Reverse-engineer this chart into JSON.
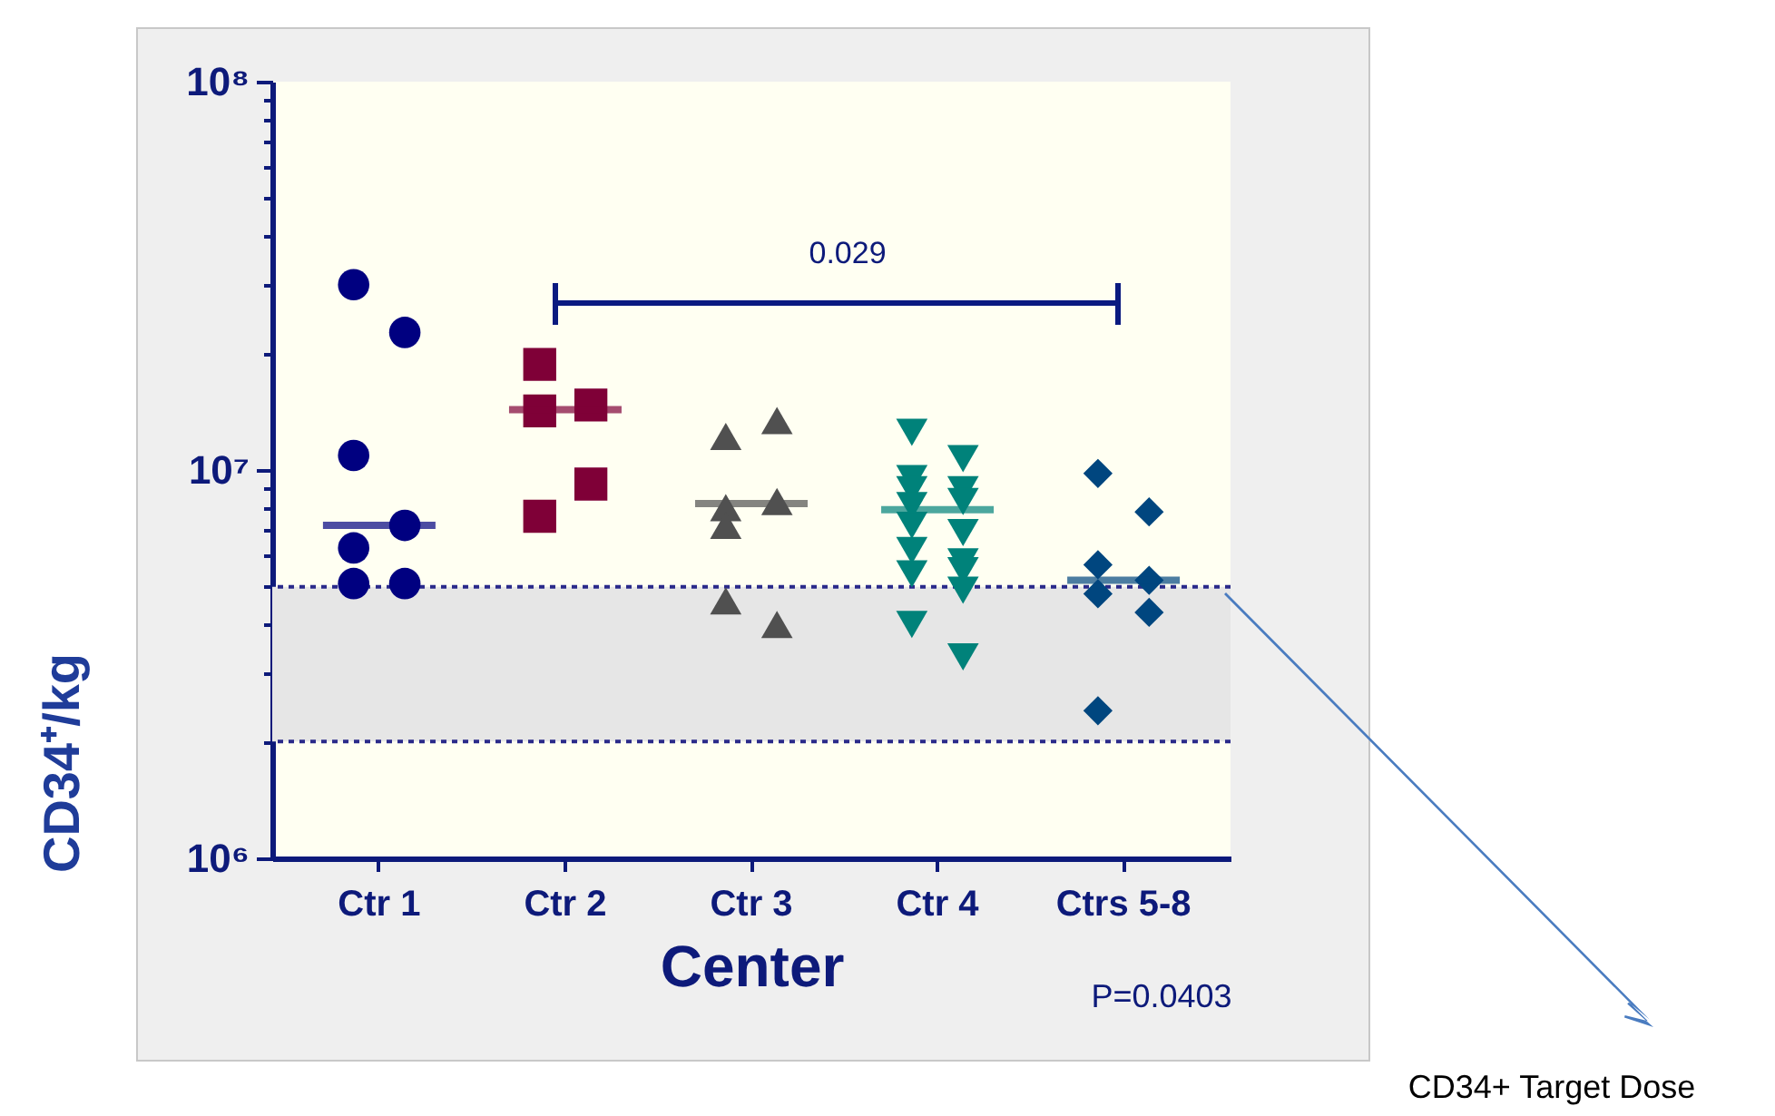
{
  "chart_data": {
    "type": "scatter",
    "xlabel": "Center",
    "ylabel": "CD34⁺/kg",
    "categories": [
      "Ctr 1",
      "Ctr 2",
      "Ctr 3",
      "Ctr 4",
      "Ctrs 5-8"
    ],
    "log": "y",
    "ylim": [
      1000000,
      100000000
    ],
    "yticks": [
      {
        "value": 1000000,
        "label": "10⁶"
      },
      {
        "value": 2000000,
        "label": null
      },
      {
        "value": 3000000,
        "label": null
      },
      {
        "value": 4000000,
        "label": null
      },
      {
        "value": 5000000,
        "label": null
      },
      {
        "value": 6000000,
        "label": null
      },
      {
        "value": 7000000,
        "label": null
      },
      {
        "value": 8000000,
        "label": null
      },
      {
        "value": 9000000,
        "label": null
      },
      {
        "value": 10000000,
        "label": "10⁷"
      },
      {
        "value": 20000000,
        "label": null
      },
      {
        "value": 30000000,
        "label": null
      },
      {
        "value": 40000000,
        "label": null
      },
      {
        "value": 50000000,
        "label": null
      },
      {
        "value": 60000000,
        "label": null
      },
      {
        "value": 70000000,
        "label": null
      },
      {
        "value": 80000000,
        "label": null
      },
      {
        "value": 90000000,
        "label": null
      },
      {
        "value": 100000000,
        "label": "10⁸"
      }
    ],
    "grid": false,
    "series": [
      {
        "marker": "circle",
        "color": "#000080",
        "x": [
          "Ctr 1",
          "Ctr 1",
          "Ctr 1",
          "Ctr 1",
          "Ctr 1",
          "Ctr 1",
          "Ctr 1"
        ],
        "values": [
          30000000,
          22600000,
          10900000,
          7200000,
          6300000,
          5100000,
          5100000
        ]
      },
      {
        "marker": "square",
        "color": "#7f0037",
        "x": [
          "Ctr 2",
          "Ctr 2",
          "Ctr 2",
          "Ctr 2",
          "Ctr 2"
        ],
        "values": [
          18700000,
          14700000,
          14200000,
          9200000,
          7600000
        ]
      },
      {
        "marker": "triangle",
        "color": "#505050",
        "x": [
          "Ctr 3",
          "Ctr 3",
          "Ctr 3",
          "Ctr 3",
          "Ctr 3",
          "Ctr 3",
          "Ctr 3"
        ],
        "values": [
          12200000,
          13400000,
          8000000,
          8300000,
          7200000,
          4000000,
          4600000
        ]
      },
      {
        "marker": "triangle-down",
        "color": "#00827a",
        "x": [
          "Ctr 4",
          "Ctr 4",
          "Ctr 4",
          "Ctr 4",
          "Ctr 4",
          "Ctr 4",
          "Ctr 4",
          "Ctr 4",
          "Ctr 4",
          "Ctr 4",
          "Ctr 4",
          "Ctr 4",
          "Ctr 4",
          "Ctr 4",
          "Ctr 4",
          "Ctr 4"
        ],
        "values": [
          12500000,
          10700000,
          9500000,
          8900000,
          8900000,
          8300000,
          8100000,
          6900000,
          7200000,
          5800000,
          6200000,
          5500000,
          5400000,
          4900000,
          4000000,
          3300000
        ]
      },
      {
        "marker": "diamond",
        "color": "#00467f",
        "x": [
          "Ctrs 5-8",
          "Ctrs 5-8",
          "Ctrs 5-8",
          "Ctrs 5-8",
          "Ctrs 5-8",
          "Ctrs 5-8",
          "Ctrs 5-8"
        ],
        "values": [
          9800000,
          7800000,
          5700000,
          5200000,
          4800000,
          4300000,
          2400000
        ]
      },
      {
        "type": "box",
        "colors": [
          "#000080",
          "#7f0037",
          "#505050",
          "#00827a",
          "#00467f"
        ],
        "boxes": [
          {
            "low": 7200000,
            "q1": 7200000,
            "median": 7200000,
            "q3": 7200000,
            "high": 7200000
          },
          {
            "low": 14300000,
            "q1": 14300000,
            "median": 14300000,
            "q3": 14300000,
            "high": 14300000
          },
          {
            "low": 8200000,
            "q1": 8200000,
            "median": 8200000,
            "q3": 8200000,
            "high": 8200000
          },
          {
            "low": 7900000,
            "q1": 7900000,
            "median": 7900000,
            "q3": 7900000,
            "high": 7900000
          },
          {
            "low": 5200000,
            "q1": 5200000,
            "median": 5200000,
            "q3": 5200000,
            "high": 5200000
          }
        ]
      }
    ],
    "ref_lines": [
      {
        "axis": "y",
        "value": 5000000,
        "line_style": "dotted",
        "color": "#2a2a8a"
      },
      {
        "axis": "y",
        "value": 2000000,
        "line_style": "dotted",
        "color": "#2a2a8a"
      }
    ],
    "bands": [
      {
        "axis": "y",
        "from": 2000000,
        "to": 5000000,
        "color": "#e6e6e6"
      }
    ],
    "annotations": [
      "0.029",
      "P=0.0403",
      "CD34+ Target Dose"
    ]
  }
}
